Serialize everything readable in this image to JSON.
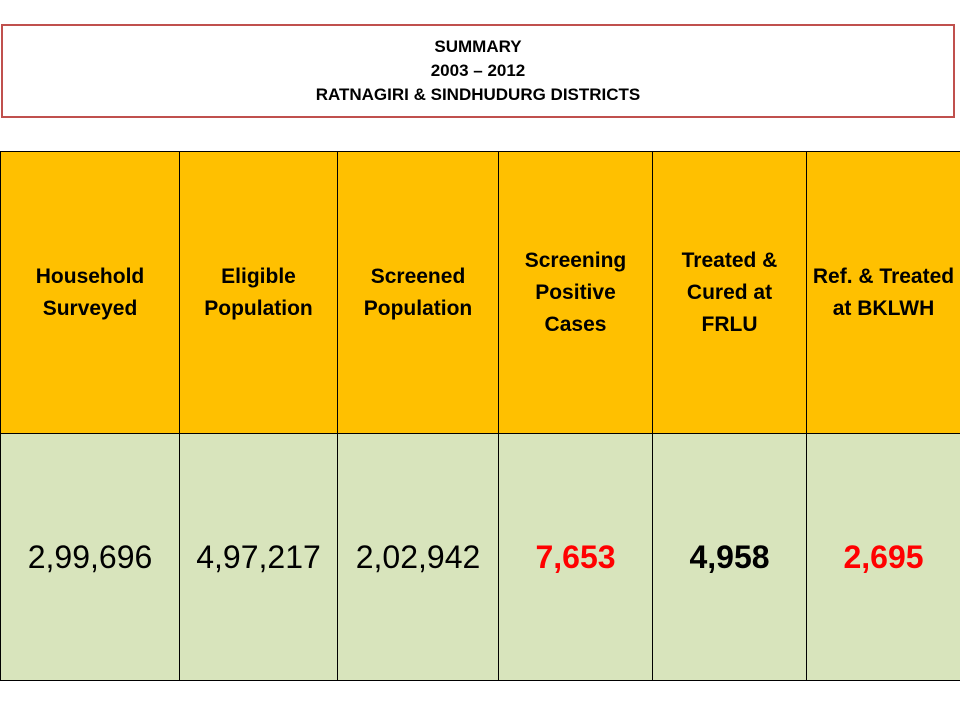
{
  "title": {
    "line1": "SUMMARY",
    "line2": "2003 – 2012",
    "line3": "RATNAGIRI & SINDHUDURG DISTRICTS"
  },
  "table": {
    "headers": [
      "Household Surveyed",
      "Eligible Population",
      "Screened Population",
      "Screening Positive Cases",
      "Treated & Cured at FRLU",
      "Ref. & Treated at BKLWH"
    ],
    "values": [
      "2,99,696",
      "4,97,217",
      "2,02,942",
      "7,653",
      "4,958",
      "2,695"
    ]
  },
  "colors": {
    "header_bg": "#ffc000",
    "value_bg": "#d8e4bc",
    "highlight_text": "#ff0000",
    "title_border": "#c0504d"
  }
}
